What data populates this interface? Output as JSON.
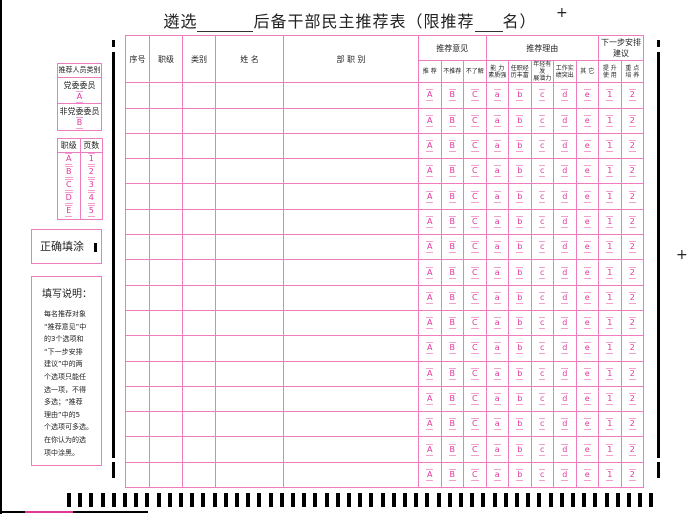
{
  "title": {
    "prefix": "遴选",
    "middle": "后备干部民主推荐表（限推荐",
    "suffix": "名）"
  },
  "category_box": {
    "header": "推荐人员类别",
    "items": [
      {
        "label": "党委委员",
        "option": "A"
      },
      {
        "label": "非党委委员",
        "option": "B"
      }
    ]
  },
  "rank_page_box": {
    "headers": [
      "职级",
      "页数"
    ],
    "rank_options": [
      "A",
      "B",
      "C",
      "D",
      "E"
    ],
    "page_options": [
      "1",
      "2",
      "3",
      "4",
      "5"
    ]
  },
  "fill_example": {
    "label": "正确填涂"
  },
  "instructions": {
    "title": "填写说明：",
    "lines": [
      "每名推荐对象",
      "“推荐意见”中",
      "的3个选项和",
      "“下一步安排",
      "建议”中的两",
      "个选项只能任",
      "选一项，不得",
      "多选；“推荐",
      "理由”中的5",
      "个选项可多选。",
      "在你认为的选",
      "项中涂黑。"
    ]
  },
  "table": {
    "headers": {
      "seq": "序号",
      "rank": "职级",
      "category": "类别",
      "name": "姓 名",
      "dept": "部 职 别",
      "opinion": "推荐意见",
      "reason": "推荐理由",
      "next": "下一步安排建议"
    },
    "subheaders": [
      "推 荐",
      "不推荐",
      "不了解",
      "能 力\n素质强",
      "任职经\n历丰富",
      "年轻有发\n展潜力",
      "工作实\n绩突出",
      "其 它",
      "提 升\n使 用",
      "重 点\n培 养"
    ],
    "options": [
      "A",
      "B",
      "C",
      "a",
      "b",
      "c",
      "d",
      "e",
      "1",
      "2"
    ],
    "row_count": 16
  }
}
